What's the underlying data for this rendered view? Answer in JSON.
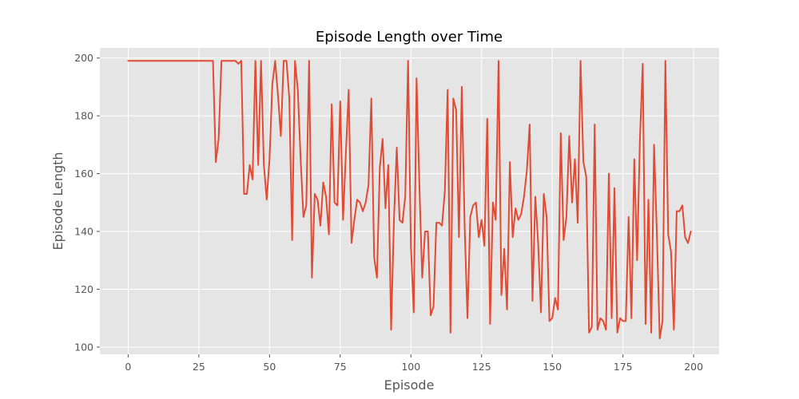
{
  "chart_data": {
    "type": "line",
    "title": "Episode Length over Time",
    "xlabel": "Episode",
    "ylabel": "Episode Length",
    "xlim": [
      -10,
      209
    ],
    "ylim": [
      97.5,
      203.5
    ],
    "xticks": [
      0,
      25,
      50,
      75,
      100,
      125,
      150,
      175,
      200
    ],
    "xtick_labels": [
      "0",
      "25",
      "50",
      "75",
      "100",
      "125",
      "150",
      "175",
      "200"
    ],
    "yticks": [
      100,
      120,
      140,
      160,
      180,
      200
    ],
    "ytick_labels": [
      "100",
      "120",
      "140",
      "160",
      "180",
      "200"
    ],
    "grid": true,
    "legend": "none",
    "colors": {
      "line": "#E24A33",
      "plot_bg": "#E5E5E5",
      "grid": "#FFFFFF",
      "tick": "#555555"
    },
    "series": [
      {
        "x": [
          0,
          1,
          2,
          3,
          4,
          5,
          6,
          7,
          8,
          9,
          10,
          11,
          12,
          13,
          14,
          15,
          16,
          17,
          18,
          19,
          20,
          21,
          22,
          23,
          24,
          25,
          26,
          27,
          28,
          29,
          30,
          31,
          32,
          33,
          34,
          35,
          36,
          37,
          38,
          39,
          40,
          41,
          42,
          43,
          44,
          45,
          46,
          47,
          48,
          49,
          50,
          51,
          52,
          53,
          54,
          55,
          56,
          57,
          58,
          59,
          60,
          61,
          62,
          63,
          64,
          65,
          66,
          67,
          68,
          69,
          70,
          71,
          72,
          73,
          74,
          75,
          76,
          77,
          78,
          79,
          80,
          81,
          82,
          83,
          84,
          85,
          86,
          87,
          88,
          89,
          90,
          91,
          92,
          93,
          94,
          95,
          96,
          97,
          98,
          99,
          100,
          101,
          102,
          103,
          104,
          105,
          106,
          107,
          108,
          109,
          110,
          111,
          112,
          113,
          114,
          115,
          116,
          117,
          118,
          119,
          120,
          121,
          122,
          123,
          124,
          125,
          126,
          127,
          128,
          129,
          130,
          131,
          132,
          133,
          134,
          135,
          136,
          137,
          138,
          139,
          140,
          141,
          142,
          143,
          144,
          145,
          146,
          147,
          148,
          149,
          150,
          151,
          152,
          153,
          154,
          155,
          156,
          157,
          158,
          159,
          160,
          161,
          162,
          163,
          164,
          165,
          166,
          167,
          168,
          169,
          170,
          171,
          172,
          173,
          174,
          175,
          176,
          177,
          178,
          179,
          180,
          181,
          182,
          183,
          184,
          185,
          186,
          187,
          188,
          189,
          190,
          191,
          192,
          193,
          194,
          195,
          196,
          197,
          198,
          199
        ],
        "y": [
          199,
          199,
          199,
          199,
          199,
          199,
          199,
          199,
          199,
          199,
          199,
          199,
          199,
          199,
          199,
          199,
          199,
          199,
          199,
          199,
          199,
          199,
          199,
          199,
          199,
          199,
          199,
          199,
          199,
          199,
          199,
          164,
          172,
          199,
          199,
          199,
          199,
          199,
          199,
          198,
          199,
          153,
          153,
          163,
          158,
          199,
          163,
          199,
          163,
          151,
          165,
          191,
          199,
          187,
          173,
          199,
          199,
          186,
          137,
          199,
          189,
          165,
          145,
          149,
          199,
          124,
          153,
          151,
          142,
          157,
          152,
          139,
          184,
          150,
          149,
          185,
          144,
          167,
          189,
          136,
          144,
          151,
          150,
          147,
          150,
          156,
          186,
          131,
          124,
          162,
          172,
          148,
          163,
          106,
          144,
          169,
          144,
          143,
          152,
          199,
          135,
          112,
          193,
          156,
          124,
          140,
          140,
          111,
          114,
          143,
          143,
          142,
          154,
          189,
          105,
          186,
          182,
          138,
          190,
          142,
          110,
          145,
          149,
          150,
          138,
          144,
          135,
          179,
          108,
          150,
          144,
          199,
          118,
          134,
          113,
          164,
          138,
          148,
          144,
          146,
          152,
          161,
          177,
          116,
          152,
          136,
          112,
          153,
          145,
          109,
          110,
          117,
          113,
          174,
          137,
          145,
          173,
          150,
          165,
          143,
          199,
          164,
          159,
          105,
          107,
          177,
          106,
          110,
          109,
          106,
          160,
          110,
          155,
          105,
          110,
          109,
          109,
          145,
          110,
          165,
          130,
          172,
          198,
          108,
          151,
          105,
          170,
          139,
          103,
          109,
          199,
          139,
          133,
          106,
          147,
          147,
          149,
          138,
          136,
          140
        ]
      }
    ]
  }
}
